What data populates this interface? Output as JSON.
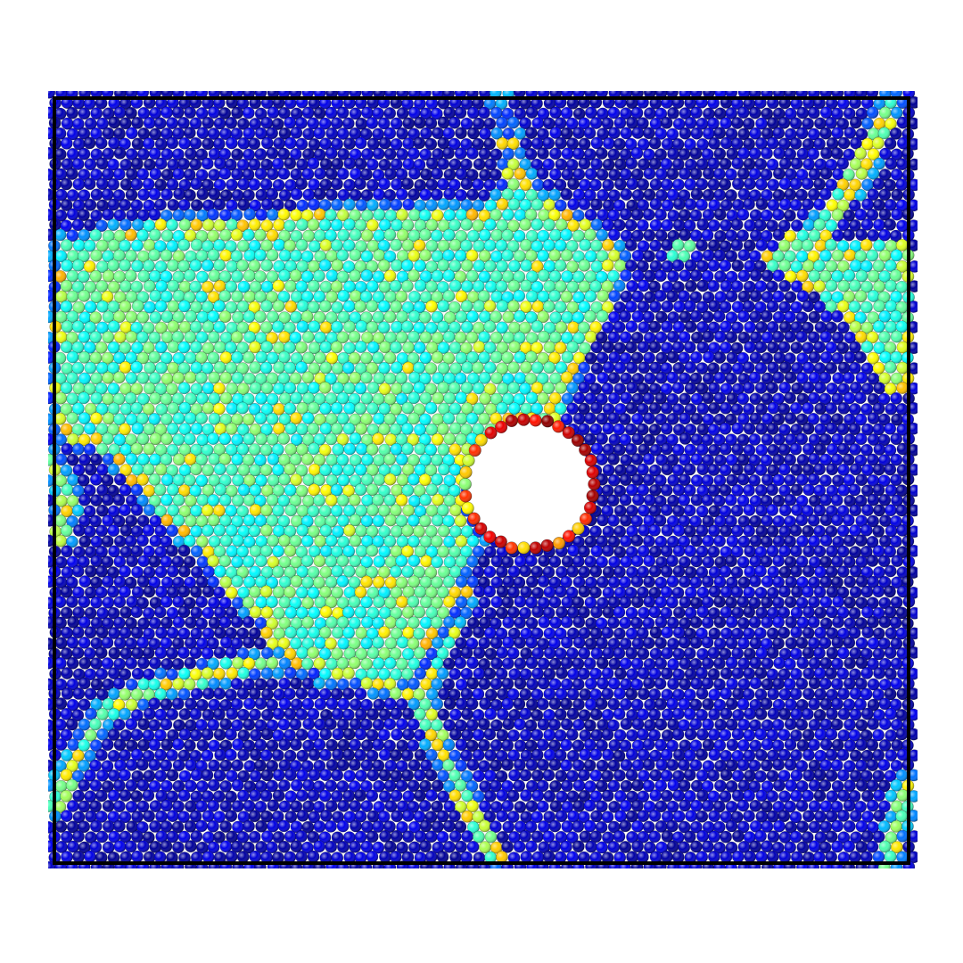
{
  "figure": {
    "background_color": "#ffffff",
    "frame_color": "#000000",
    "colormap": "jet",
    "colormap_stops": [
      "#00007f",
      "#0000ff",
      "#007fff",
      "#00ffff",
      "#7fff7f",
      "#ffff00",
      "#ff7f00",
      "#ff0000",
      "#7f0000"
    ],
    "regions": [
      {
        "name": "left-grain",
        "phase": "cyan-green",
        "value_range": [
          0.35,
          0.55
        ]
      },
      {
        "name": "right-grain",
        "phase": "dark-blue",
        "value_range": [
          0.0,
          0.12
        ]
      },
      {
        "name": "upper-left-grain",
        "phase": "dark-blue",
        "value_range": [
          0.0,
          0.12
        ]
      },
      {
        "name": "lower-left-grain",
        "phase": "dark-blue",
        "value_range": [
          0.0,
          0.12
        ]
      },
      {
        "name": "upper-right-patch",
        "phase": "cyan-green",
        "value_range": [
          0.3,
          0.55
        ]
      }
    ],
    "void_rim_value_range": [
      0.85,
      1.0
    ],
    "grain_boundary_value_range": [
      0.5,
      0.8
    ]
  }
}
